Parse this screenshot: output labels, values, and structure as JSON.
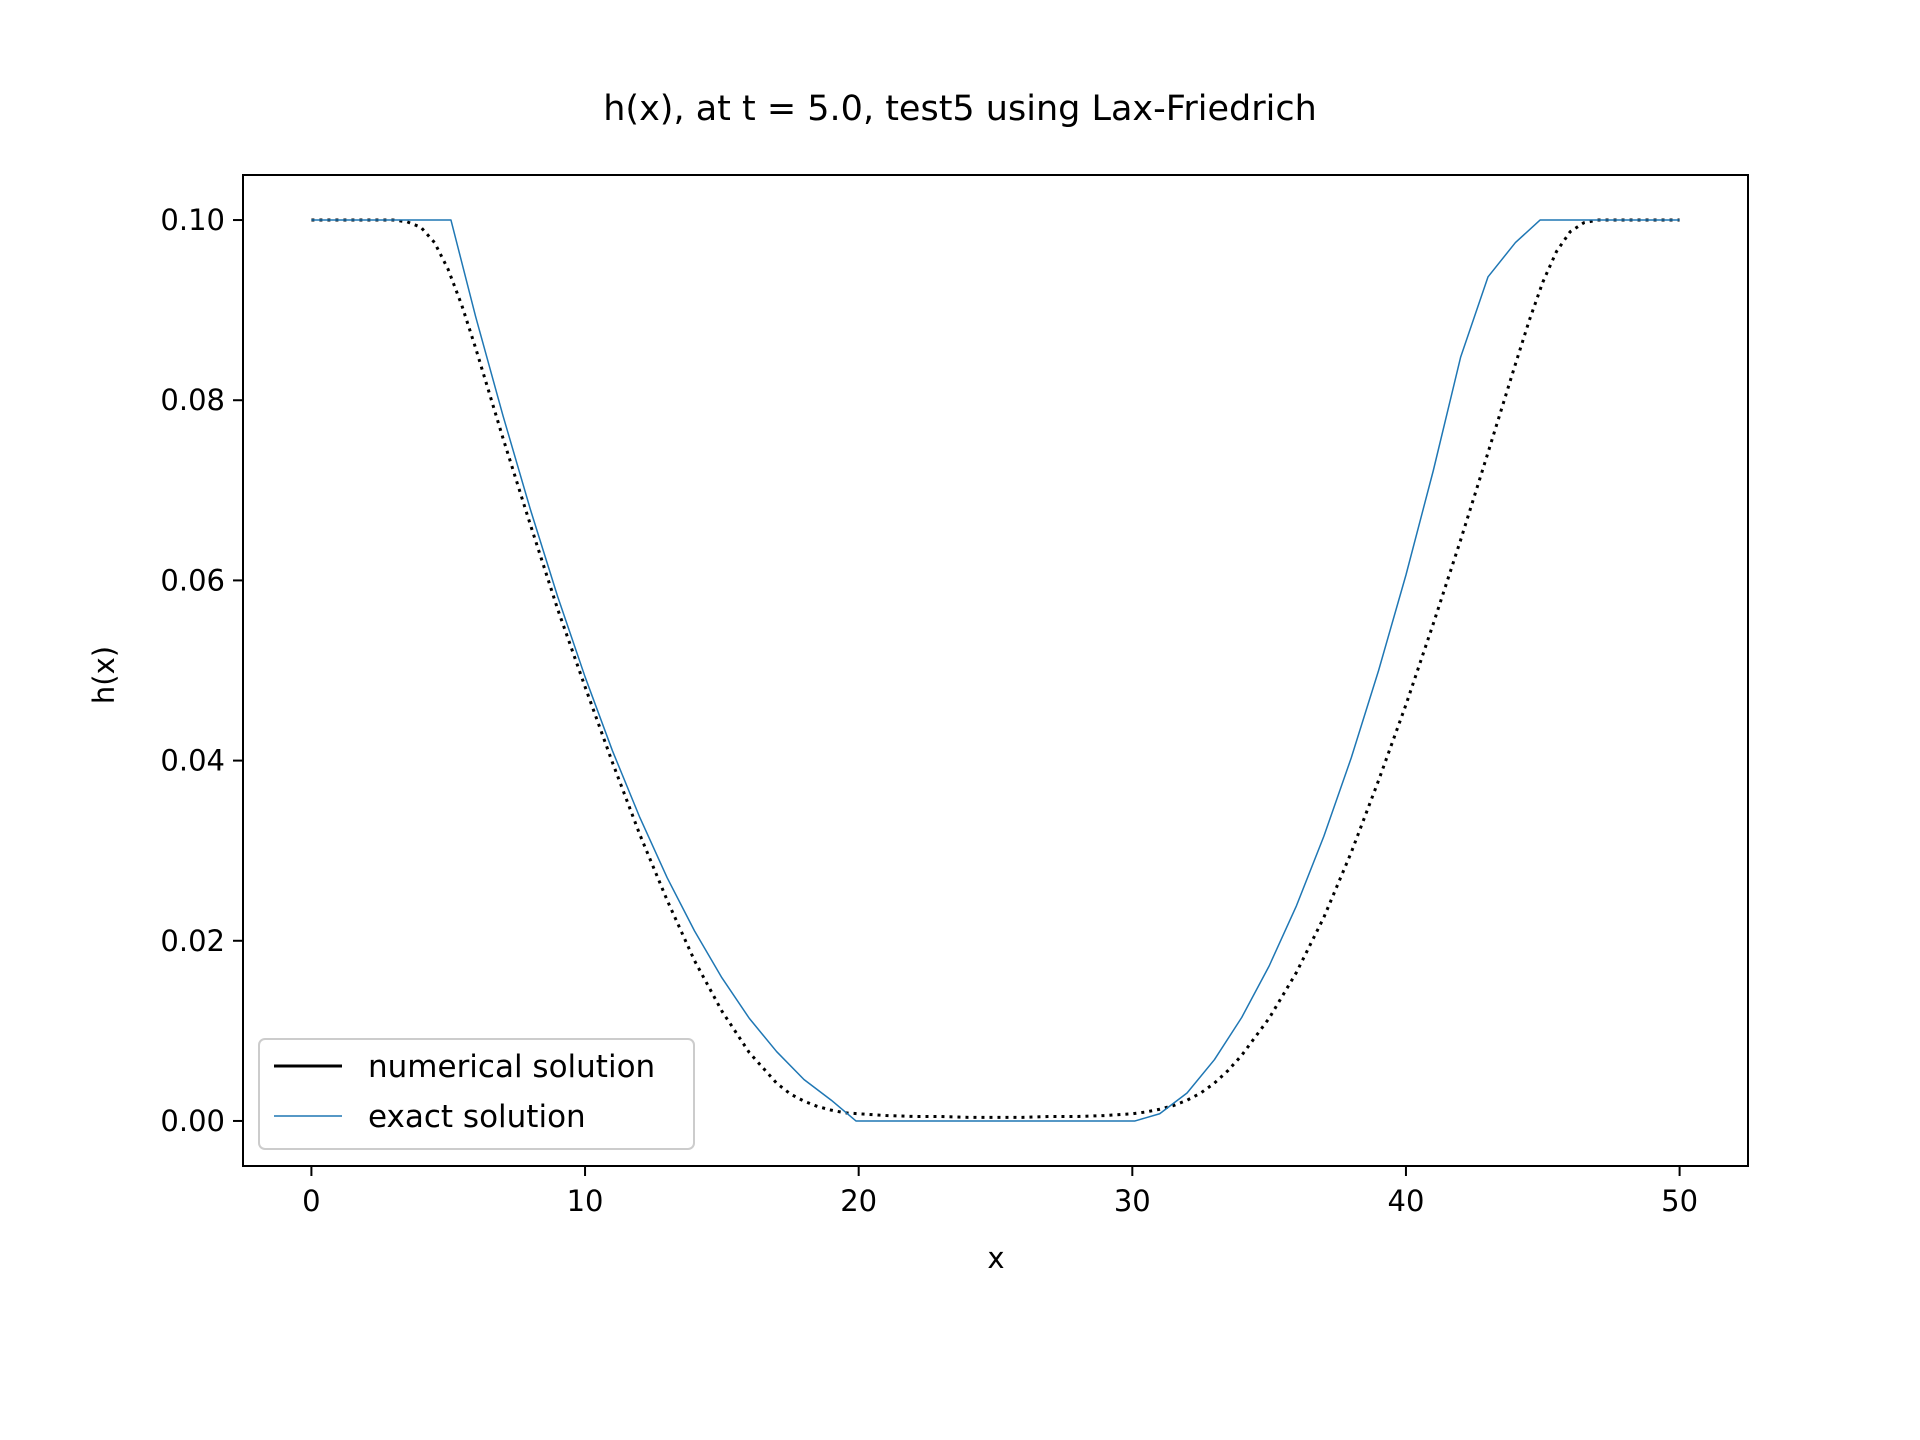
{
  "chart_data": {
    "type": "line",
    "title": "h(x), at t = 5.0, test5 using Lax-Friedrich",
    "xlabel": "x",
    "ylabel": "h(x)",
    "xlim": [
      -2.5,
      52.5
    ],
    "ylim": [
      -0.005,
      0.105
    ],
    "xticks": [
      0,
      10,
      20,
      30,
      40,
      50
    ],
    "xtick_labels": [
      "0",
      "10",
      "20",
      "30",
      "40",
      "50"
    ],
    "yticks": [
      0.0,
      0.02,
      0.04,
      0.06,
      0.08,
      0.1
    ],
    "ytick_labels": [
      "0.00",
      "0.02",
      "0.04",
      "0.06",
      "0.08",
      "0.10"
    ],
    "grid": false,
    "legend_position": "lower-left",
    "series": [
      {
        "name": "numerical solution",
        "color": "#000000",
        "style": "stepped-dotted",
        "x": [
          0,
          2,
          3,
          3.5,
          4,
          4.5,
          5,
          5.5,
          6,
          6.5,
          7,
          8,
          9,
          10,
          11,
          12,
          13,
          14,
          15,
          16,
          17,
          17.5,
          18,
          18.5,
          19,
          19.5,
          20,
          21,
          22,
          23,
          24,
          25,
          26,
          27,
          28,
          29,
          30,
          30.5,
          31,
          31.5,
          32,
          32.5,
          33,
          33.5,
          34,
          35,
          36,
          37,
          38,
          39,
          40,
          41,
          42,
          43,
          43.5,
          44,
          44.5,
          45,
          45.5,
          46,
          46.5,
          47,
          48,
          50
        ],
        "y": [
          0.1,
          0.1,
          0.1,
          0.0998,
          0.0992,
          0.0975,
          0.0945,
          0.0905,
          0.0858,
          0.0808,
          0.0758,
          0.0662,
          0.0568,
          0.0482,
          0.0398,
          0.0318,
          0.0245,
          0.0178,
          0.0122,
          0.0076,
          0.0042,
          0.003,
          0.0022,
          0.0016,
          0.0012,
          0.0009,
          0.0008,
          0.0006,
          0.0005,
          0.0005,
          0.0004,
          0.0004,
          0.0004,
          0.0005,
          0.0005,
          0.0006,
          0.0008,
          0.001,
          0.0013,
          0.0017,
          0.0023,
          0.0031,
          0.0042,
          0.0056,
          0.0073,
          0.0114,
          0.0165,
          0.0226,
          0.0298,
          0.0378,
          0.0462,
          0.0552,
          0.0645,
          0.0742,
          0.0791,
          0.084,
          0.0888,
          0.0931,
          0.0965,
          0.0987,
          0.0997,
          0.1,
          0.1,
          0.1
        ]
      },
      {
        "name": "exact solution",
        "color": "#1f77b4",
        "style": "solid",
        "x": [
          0,
          2,
          4,
          5.1,
          6,
          7,
          8,
          9,
          10,
          11,
          12,
          13,
          14,
          15,
          16,
          17,
          18,
          19,
          19.9,
          25,
          30.1,
          31,
          32,
          33,
          34,
          35,
          36,
          37,
          38,
          39,
          40,
          41,
          42,
          43,
          44,
          44.9,
          46,
          48,
          50
        ],
        "y": [
          0.1,
          0.1,
          0.1,
          0.1,
          0.0893,
          0.0783,
          0.0679,
          0.0582,
          0.0493,
          0.0411,
          0.0337,
          0.027,
          0.0211,
          0.0159,
          0.0114,
          0.0077,
          0.0046,
          0.0023,
          0.0,
          0.0,
          0.0,
          0.0008,
          0.0031,
          0.0068,
          0.0115,
          0.0172,
          0.0239,
          0.0316,
          0.0403,
          0.05,
          0.0606,
          0.0722,
          0.0848,
          0.0937,
          0.0975,
          0.1,
          0.1,
          0.1,
          0.1
        ]
      }
    ]
  }
}
